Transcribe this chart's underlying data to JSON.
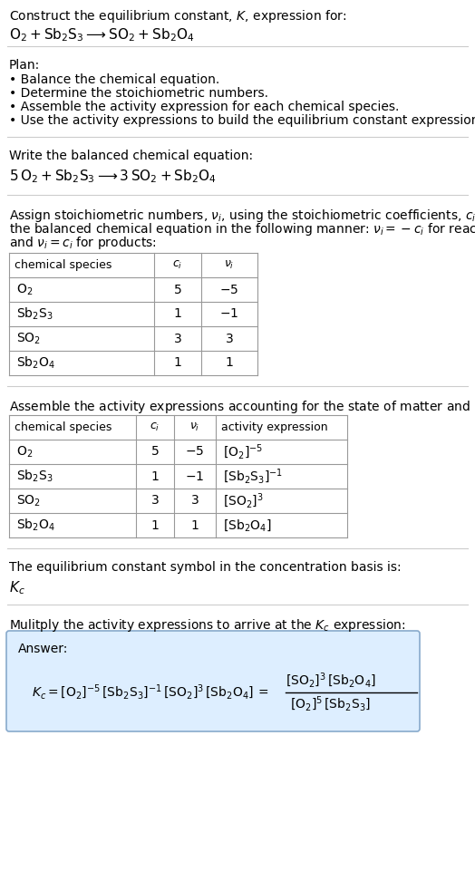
{
  "title_line1": "Construct the equilibrium constant, $K$, expression for:",
  "title_line2": "$\\mathrm{O_2 + Sb_2S_3 \\longrightarrow SO_2 + Sb_2O_4}$",
  "plan_header": "Plan:",
  "plan_items": [
    "• Balance the chemical equation.",
    "• Determine the stoichiometric numbers.",
    "• Assemble the activity expression for each chemical species.",
    "• Use the activity expressions to build the equilibrium constant expression."
  ],
  "balanced_header": "Write the balanced chemical equation:",
  "balanced_eq": "$5\\,\\mathrm{O_2 + Sb_2S_3 \\longrightarrow 3\\,SO_2 + Sb_2O_4}$",
  "stoich_intro_lines": [
    "Assign stoichiometric numbers, $\\nu_i$, using the stoichiometric coefficients, $c_i$, from",
    "the balanced chemical equation in the following manner: $\\nu_i = -c_i$ for reactants",
    "and $\\nu_i = c_i$ for products:"
  ],
  "table1_headers": [
    "chemical species",
    "$c_i$",
    "$\\nu_i$"
  ],
  "table1_rows": [
    [
      "$\\mathrm{O_2}$",
      "5",
      "$-5$"
    ],
    [
      "$\\mathrm{Sb_2S_3}$",
      "1",
      "$-1$"
    ],
    [
      "$\\mathrm{SO_2}$",
      "3",
      "3"
    ],
    [
      "$\\mathrm{Sb_2O_4}$",
      "1",
      "1"
    ]
  ],
  "activity_intro": "Assemble the activity expressions accounting for the state of matter and $\\nu_i$:",
  "table2_headers": [
    "chemical species",
    "$c_i$",
    "$\\nu_i$",
    "activity expression"
  ],
  "table2_rows": [
    [
      "$\\mathrm{O_2}$",
      "5",
      "$-5$",
      "$[\\mathrm{O_2}]^{-5}$"
    ],
    [
      "$\\mathrm{Sb_2S_3}$",
      "1",
      "$-1$",
      "$[\\mathrm{Sb_2S_3}]^{-1}$"
    ],
    [
      "$\\mathrm{SO_2}$",
      "3",
      "3",
      "$[\\mathrm{SO_2}]^3$"
    ],
    [
      "$\\mathrm{Sb_2O_4}$",
      "1",
      "1",
      "$[\\mathrm{Sb_2O_4}]$"
    ]
  ],
  "kc_text": "The equilibrium constant symbol in the concentration basis is:",
  "kc_symbol": "$K_c$",
  "multiply_text": "Mulitply the activity expressions to arrive at the $K_c$ expression:",
  "answer_label": "Answer:",
  "kc_expr_left": "$K_c = [\\mathrm{O_2}]^{-5}\\,[\\mathrm{Sb_2S_3}]^{-1}\\,[\\mathrm{SO_2}]^3\\,[\\mathrm{Sb_2O_4}]\\, = $",
  "frac_num": "$[\\mathrm{SO_2}]^3\\,[\\mathrm{Sb_2O_4}]$",
  "frac_den": "$[\\mathrm{O_2}]^5\\,[\\mathrm{Sb_2S_3}]$",
  "bg_color": "#ffffff",
  "table_border_color": "#999999",
  "answer_box_color": "#ddeeff",
  "answer_box_border": "#88aacc",
  "text_color": "#000000",
  "font_size": 10,
  "separator_color": "#cccccc"
}
